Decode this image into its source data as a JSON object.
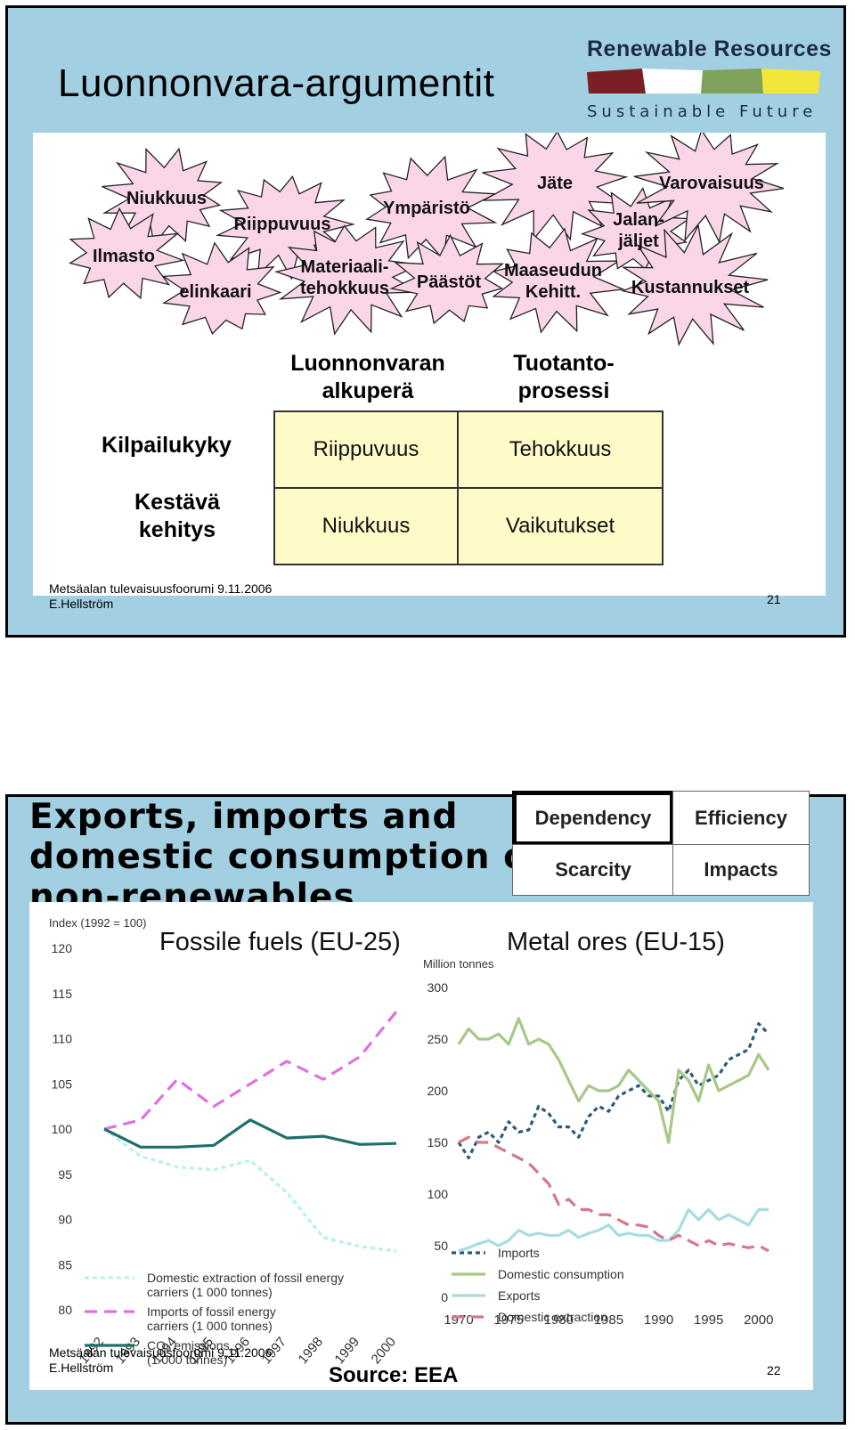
{
  "slide1": {
    "title": "Luonnonvara-argumentit",
    "logo": {
      "top_text": "Renewable Resources",
      "bottom_text": "Sustainable Future",
      "colors": [
        "#7a1f24",
        "#ffffff",
        "#7fa25a",
        "#f2e63a"
      ]
    },
    "stars": [
      {
        "label": "Niukkuus"
      },
      {
        "label": "Riippuvuus"
      },
      {
        "label": "Ilmasto"
      },
      {
        "label": "elinkaari"
      },
      {
        "label": "Materiaali-\ntehokkuus"
      },
      {
        "label": "Ympäristö"
      },
      {
        "label": "Päästöt"
      },
      {
        "label": "Jäte"
      },
      {
        "label": "Maaseudun\nKehitt."
      },
      {
        "label": "Jalan-\njäljet"
      },
      {
        "label": "Varovaisuus"
      },
      {
        "label": "Kustannukset"
      }
    ],
    "star_color": "#fbd6e8",
    "matrix": {
      "col_headers": [
        "Luonnonvaran\nalkuperä",
        "Tuotanto-\nprosessi"
      ],
      "row_headers": [
        "Kilpailukyky",
        "Kestävä\nkehitys"
      ],
      "cells": [
        [
          "Riippuvuus",
          "Tehokkuus"
        ],
        [
          "Niukkuus",
          "Vaikutukset"
        ]
      ]
    },
    "footer_line1": "Metsäalan tulevaisuusfoorumi 9.11.2006",
    "footer_line2": "E.Hellström",
    "page_number": "21"
  },
  "slide2": {
    "title": "Exports, imports and\ndomestic consumption of\nnon-renewables",
    "matrix": [
      [
        "Dependency",
        "Efficiency"
      ],
      [
        "Scarcity",
        "Impacts"
      ]
    ],
    "source": "Source: EEA",
    "footer_line1": "Metsäalan tulevaisuusfoorumi 9.11.2006",
    "footer_line2": "E.Hellström",
    "page_number": "22"
  },
  "chart_data": [
    {
      "type": "line",
      "title": "Fossile fuels (EU-25)",
      "ylabel": "Index (1992 = 100)",
      "x": [
        1992,
        1993,
        1994,
        1995,
        1996,
        1997,
        1998,
        1999,
        2000
      ],
      "ylim": [
        80,
        120
      ],
      "yticks": [
        80,
        85,
        90,
        95,
        100,
        105,
        110,
        115,
        120
      ],
      "series": [
        {
          "name": "Domestic extraction of fossil energy carriers (1 000 tonnes)",
          "color": "#b8f0ee",
          "dash": "dotted",
          "values": [
            100,
            97,
            95.8,
            95.5,
            96.5,
            93,
            88,
            87,
            86.5
          ]
        },
        {
          "name": "Imports of fossil energy carriers (1 000 tonnes)",
          "color": "#e070e0",
          "dash": "dashed",
          "values": [
            100,
            101,
            105.5,
            102.5,
            105,
            107.5,
            105.5,
            108,
            113
          ]
        },
        {
          "name": "CO₂ emissions (1 000 tonnes)",
          "color": "#1f6f6a",
          "dash": "solid",
          "values": [
            100,
            98,
            98,
            98.2,
            101,
            99,
            99.2,
            98.3,
            98.4
          ]
        }
      ]
    },
    {
      "type": "line",
      "title": "Metal ores (EU-15)",
      "ylabel": "Million tonnes",
      "x": [
        1970,
        1971,
        1972,
        1973,
        1974,
        1975,
        1976,
        1977,
        1978,
        1979,
        1980,
        1981,
        1982,
        1983,
        1984,
        1985,
        1986,
        1987,
        1988,
        1989,
        1990,
        1991,
        1992,
        1993,
        1994,
        1995,
        1996,
        1997,
        1998,
        1999,
        2000,
        2001
      ],
      "xticks": [
        1970,
        1975,
        1980,
        1985,
        1990,
        1995,
        2000
      ],
      "ylim": [
        0,
        300
      ],
      "yticks": [
        0,
        50,
        100,
        150,
        200,
        250,
        300
      ],
      "series": [
        {
          "name": "Imports",
          "color": "#2e5a7a",
          "dash": "dotted",
          "values": [
            150,
            135,
            155,
            160,
            150,
            170,
            160,
            162,
            185,
            178,
            165,
            165,
            155,
            175,
            185,
            180,
            195,
            200,
            205,
            195,
            195,
            180,
            210,
            220,
            205,
            210,
            215,
            230,
            235,
            240,
            265,
            255
          ]
        },
        {
          "name": "Domestic consumption",
          "color": "#a8c888",
          "dash": "solid",
          "values": [
            245,
            260,
            250,
            250,
            255,
            245,
            270,
            245,
            250,
            245,
            230,
            210,
            190,
            205,
            200,
            200,
            205,
            220,
            210,
            200,
            190,
            150,
            220,
            210,
            190,
            225,
            200,
            205,
            210,
            215,
            235,
            220
          ]
        },
        {
          "name": "Exports",
          "color": "#a8dde0",
          "dash": "solid",
          "values": [
            45,
            48,
            52,
            55,
            50,
            55,
            65,
            60,
            62,
            60,
            60,
            65,
            58,
            62,
            65,
            70,
            60,
            62,
            60,
            60,
            55,
            55,
            65,
            85,
            75,
            85,
            75,
            80,
            75,
            70,
            85,
            85
          ]
        },
        {
          "name": "Domestic extraction",
          "color": "#d4788a",
          "dash": "dashed",
          "values": [
            150,
            155,
            150,
            150,
            145,
            140,
            135,
            130,
            120,
            110,
            90,
            95,
            85,
            85,
            80,
            80,
            75,
            70,
            70,
            68,
            60,
            55,
            60,
            55,
            50,
            55,
            50,
            52,
            50,
            48,
            50,
            45
          ]
        }
      ]
    }
  ]
}
